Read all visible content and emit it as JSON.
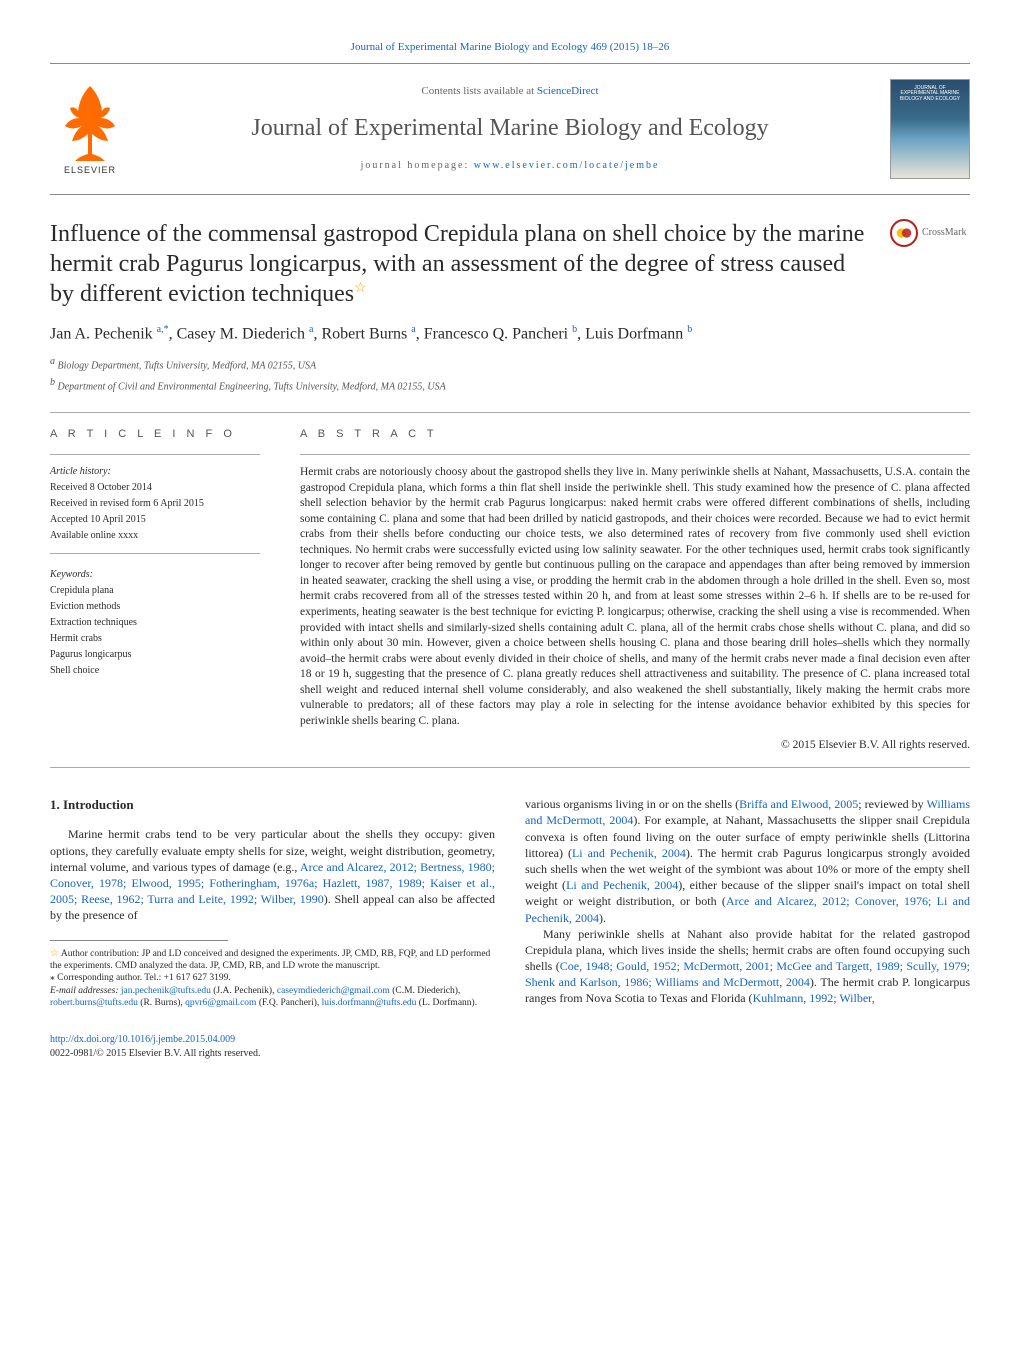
{
  "header": {
    "citation_prefix": "Journal of Experimental Marine Biology and Ecology 469 (2015) 18–26",
    "scidirect_prefix": "Contents lists available at ",
    "scidirect_link": "ScienceDirect",
    "journal_name": "Journal of Experimental Marine Biology and Ecology",
    "homepage_prefix": "journal homepage: ",
    "homepage_link": "www.elsevier.com/locate/jembe",
    "cover_title": "JOURNAL OF EXPERIMENTAL MARINE BIOLOGY AND ECOLOGY",
    "crossmark": "CrossMark",
    "elsevier": "ELSEVIER"
  },
  "title": "Influence of the commensal gastropod Crepidula plana on shell choice by the marine hermit crab Pagurus longicarpus, with an assessment of the degree of stress caused by different eviction techniques",
  "authors_html": "Jan A. Pechenik <sup class='sup'>a,</sup><sup class='sup'>*</sup>, Casey M. Diederich <sup class='sup'>a</sup>, Robert Burns <sup class='sup'>a</sup>, Francesco Q. Pancheri <sup class='sup'>b</sup>, Luis Dorfmann <sup class='sup'>b</sup>",
  "affiliations": {
    "a": "Biology Department, Tufts University, Medford, MA 02155, USA",
    "b": "Department of Civil and Environmental Engineering, Tufts University, Medford, MA 02155, USA"
  },
  "article_info": {
    "head": "A R T I C L E   I N F O",
    "history_head": "Article history:",
    "received": "Received 8 October 2014",
    "revised": "Received in revised form 6 April 2015",
    "accepted": "Accepted 10 April 2015",
    "online": "Available online xxxx",
    "keywords_head": "Keywords:",
    "keywords": [
      "Crepidula plana",
      "Eviction methods",
      "Extraction techniques",
      "Hermit crabs",
      "Pagurus longicarpus",
      "Shell choice"
    ]
  },
  "abstract": {
    "head": "A B S T R A C T",
    "text": "Hermit crabs are notoriously choosy about the gastropod shells they live in. Many periwinkle shells at Nahant, Massachusetts, U.S.A. contain the gastropod Crepidula plana, which forms a thin flat shell inside the periwinkle shell. This study examined how the presence of C. plana affected shell selection behavior by the hermit crab Pagurus longicarpus: naked hermit crabs were offered different combinations of shells, including some containing C. plana and some that had been drilled by naticid gastropods, and their choices were recorded. Because we had to evict hermit crabs from their shells before conducting our choice tests, we also determined rates of recovery from five commonly used shell eviction techniques. No hermit crabs were successfully evicted using low salinity seawater. For the other techniques used, hermit crabs took significantly longer to recover after being removed by gentle but continuous pulling on the carapace and appendages than after being removed by immersion in heated seawater, cracking the shell using a vise, or prodding the hermit crab in the abdomen through a hole drilled in the shell. Even so, most hermit crabs recovered from all of the stresses tested within 20 h, and from at least some stresses within 2–6 h. If shells are to be re-used for experiments, heating seawater is the best technique for evicting P. longicarpus; otherwise, cracking the shell using a vise is recommended. When provided with intact shells and similarly-sized shells containing adult C. plana, all of the hermit crabs chose shells without C. plana, and did so within only about 30 min. However, given a choice between shells housing C. plana and those bearing drill holes–shells which they normally avoid–the hermit crabs were about evenly divided in their choice of shells, and many of the hermit crabs never made a final decision even after 18 or 19 h, suggesting that the presence of C. plana greatly reduces shell attractiveness and suitability. The presence of C. plana increased total shell weight and reduced internal shell volume considerably, and also weakened the shell substantially, likely making the hermit crabs more vulnerable to predators; all of these factors may play a role in selecting for the intense avoidance behavior exhibited by this species for periwinkle shells bearing C. plana.",
    "copyright": "© 2015 Elsevier B.V. All rights reserved."
  },
  "intro": {
    "head": "1. Introduction",
    "p1_a": "Marine hermit crabs tend to be very particular about the shells they occupy: given options, they carefully evaluate empty shells for size, weight, weight distribution, geometry, internal volume, and various types of damage (e.g., ",
    "p1_ref": "Arce and Alcarez, 2012; Bertness, 1980; Conover, 1978; Elwood, 1995; Fotheringham, 1976a; Hazlett, 1987, 1989; Kaiser et al., 2005; Reese, 1962; Turra and Leite, 1992; Wilber, 1990",
    "p1_b": "). Shell appeal can also be affected by the presence of",
    "p2_a": "various organisms living in or on the shells (",
    "p2_ref1": "Briffa and Elwood, 2005",
    "p2_b": "; reviewed by ",
    "p2_ref2": "Williams and McDermott, 2004",
    "p2_c": "). For example, at Nahant, Massachusetts the slipper snail Crepidula convexa is often found living on the outer surface of empty periwinkle shells (Littorina littorea) (",
    "p2_ref3": "Li and Pechenik, 2004",
    "p2_d": "). The hermit crab Pagurus longicarpus strongly avoided such shells when the wet weight of the symbiont was about 10% or more of the empty shell weight (",
    "p2_ref4": "Li and Pechenik, 2004",
    "p2_e": "), either because of the slipper snail's impact on total shell weight or weight distribution, or both (",
    "p2_ref5": "Arce and Alcarez, 2012; Conover, 1976; Li and Pechenik, 2004",
    "p2_f": ").",
    "p3_a": "Many periwinkle shells at Nahant also provide habitat for the related gastropod Crepidula plana, which lives inside the shells; hermit crabs are often found occupying such shells (",
    "p3_ref1": "Coe, 1948; Gould, 1952; McDermott, 2001; McGee and Targett, 1989; Scully, 1979; Shenk and Karlson, 1986; Williams and McDermott, 2004",
    "p3_b": "). The hermit crab P. longicarpus ranges from Nova Scotia to Texas and Florida (",
    "p3_ref2": "Kuhlmann, 1992; Wilber,"
  },
  "footnotes": {
    "contrib_a": "Author contribution: JP and LD conceived and designed the experiments. JP, CMD, RB, FQP, and LD performed the experiments. CMD analyzed the data. JP, CMD, RB, and LD wrote the manuscript.",
    "corr": "Corresponding author. Tel.: +1 617 627 3199.",
    "email_label": "E-mail addresses: ",
    "e1": "jan.pechenik@tufts.edu",
    "e1n": " (J.A. Pechenik), ",
    "e2": "caseymdiederich@gmail.com",
    "e2n": " (C.M. Diederich), ",
    "e3": "robert.burns@tufts.edu",
    "e3n": " (R. Burns), ",
    "e4": "qpvr6@gmail.com",
    "e4n": " (F.Q. Pancheri), ",
    "e5": "luis.dorfmann@tufts.edu",
    "e5n": " (L. Dorfmann)."
  },
  "footer": {
    "doi": "http://dx.doi.org/10.1016/j.jembe.2015.04.009",
    "issn": "0022-0981/© 2015 Elsevier B.V. All rights reserved."
  }
}
